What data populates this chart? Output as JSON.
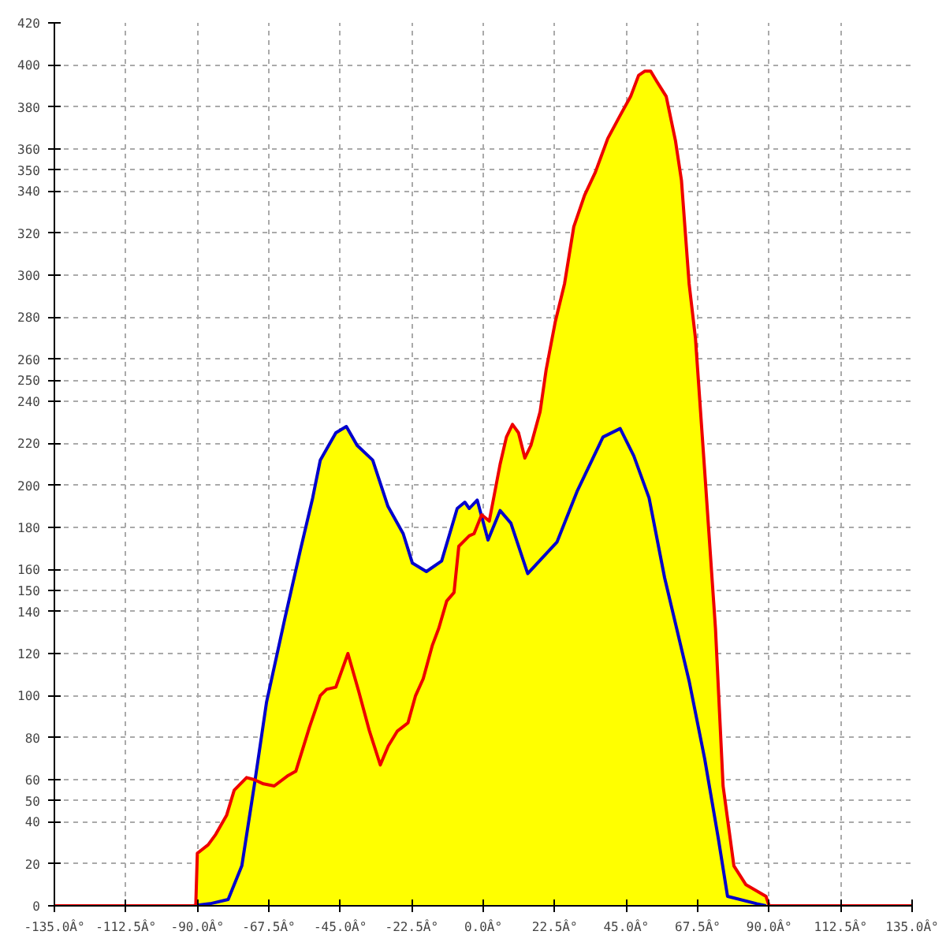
{
  "chart_data": {
    "type": "line",
    "xlim": [
      -135,
      135
    ],
    "ylim": [
      0,
      420
    ],
    "xticks": [
      {
        "value": -135,
        "label": "-135.0Â°"
      },
      {
        "value": -112.5,
        "label": "-112.5Â°"
      },
      {
        "value": -90,
        "label": "-90.0Â°"
      },
      {
        "value": -67.5,
        "label": "-67.5Â°"
      },
      {
        "value": -45,
        "label": "-45.0Â°"
      },
      {
        "value": -22.5,
        "label": "-22.5Â°"
      },
      {
        "value": 0,
        "label": "0.0Â°"
      },
      {
        "value": 22.5,
        "label": "22.5Â°"
      },
      {
        "value": 45,
        "label": "45.0Â°"
      },
      {
        "value": 67.5,
        "label": "67.5Â°"
      },
      {
        "value": 90,
        "label": "90.0Â°"
      },
      {
        "value": 112.5,
        "label": "112.5Â°"
      },
      {
        "value": 135,
        "label": "135.0Â°"
      }
    ],
    "yticks": [
      0,
      20,
      40,
      50,
      60,
      80,
      100,
      120,
      140,
      150,
      160,
      180,
      200,
      220,
      240,
      250,
      260,
      280,
      300,
      320,
      340,
      350,
      360,
      380,
      400,
      420
    ],
    "grid": true,
    "marker": "none",
    "line_style": "solid",
    "series": [
      {
        "type": "area",
        "color": "#ffff00",
        "x": [
          -90.5,
          -90,
          -86.6,
          -84.2,
          -80.8,
          -78.4,
          -74.5,
          -72.1,
          -68.2,
          -62.4,
          -57.6,
          -53.7,
          -51.3,
          -46.4,
          -43.1,
          -39.7,
          -34.8,
          -30,
          -25.2,
          -22.3,
          -17.9,
          -13.1,
          -8.2,
          -5.8,
          -4.4,
          -1.9,
          -0.5,
          1.9,
          5.3,
          7.3,
          9.2,
          11.1,
          13.1,
          15,
          17.9,
          19.8,
          22.7,
          25.6,
          28.5,
          31.9,
          35.3,
          39.2,
          43.1,
          46.4,
          48.9,
          50.8,
          52.7,
          54.7,
          57.6,
          60.5,
          62.4,
          64.8,
          66.8,
          69.7,
          73.1,
          75.5,
          78.9,
          82.7,
          89,
          90
        ],
        "values": [
          0,
          25,
          29,
          34,
          43,
          55,
          61,
          60,
          97,
          137,
          169,
          194,
          212,
          225,
          228,
          219,
          212,
          190,
          177,
          163,
          159,
          164,
          189,
          192,
          189,
          193,
          186,
          183,
          210,
          223,
          229,
          225,
          213,
          219,
          235,
          255,
          278,
          296,
          323,
          338,
          349,
          365,
          376,
          385,
          395,
          397,
          397,
          392,
          385,
          364,
          345,
          296,
          270,
          207,
          132,
          57,
          19,
          10,
          4.5,
          0
        ]
      },
      {
        "color": "#0000cc",
        "x": [
          -91.4,
          -86,
          -80.3,
          -76,
          -72.1,
          -68.2,
          -62.4,
          -57.6,
          -53.7,
          -51.3,
          -46.4,
          -43.1,
          -39.7,
          -34.8,
          -30,
          -25.2,
          -22.3,
          -17.9,
          -13.1,
          -8.2,
          -5.8,
          -4.4,
          -1.9,
          1.5,
          5.3,
          8.7,
          14,
          23.2,
          29.5,
          37.7,
          43.1,
          47.4,
          52.2,
          57.1,
          64.8,
          69.7,
          74,
          76.9,
          86.1,
          89
        ],
        "values": [
          0,
          1,
          3,
          19,
          57,
          97,
          137,
          169,
          194,
          212,
          225,
          228,
          219,
          212,
          190,
          177,
          163,
          159,
          164,
          189,
          192,
          189,
          193,
          174,
          188,
          182,
          158,
          173,
          197,
          223,
          227,
          214,
          194,
          156,
          107,
          70,
          32,
          4.5,
          1,
          0
        ]
      },
      {
        "color": "#ee0000",
        "x": [
          -135,
          -90.5,
          -90,
          -86.6,
          -84.2,
          -80.8,
          -78.4,
          -74.5,
          -72.1,
          -69.2,
          -65.8,
          -61.4,
          -59,
          -54.7,
          -51.3,
          -49.3,
          -46.4,
          -42.6,
          -39.2,
          -35.8,
          -32.4,
          -29.9,
          -27.1,
          -23.7,
          -21.3,
          -18.9,
          -16,
          -14,
          -11.5,
          -9.2,
          -7.7,
          -4.4,
          -2.9,
          -0.5,
          1.9,
          5.3,
          7.3,
          9.2,
          11.1,
          13.1,
          15,
          17.9,
          19.8,
          22.7,
          25.6,
          28.5,
          31.9,
          35.3,
          39.2,
          43.1,
          46.4,
          48.9,
          50.8,
          52.7,
          54.7,
          57.6,
          60.5,
          62.4,
          64.8,
          66.8,
          69.7,
          73.1,
          75.5,
          78.9,
          82.7,
          89,
          90,
          135
        ],
        "values": [
          0,
          0,
          25,
          29,
          34,
          43,
          55,
          61,
          60,
          58,
          57,
          62,
          64,
          85,
          100,
          103,
          104,
          120,
          102,
          83,
          67,
          76,
          83,
          87,
          100,
          108,
          124,
          132,
          145,
          149,
          171,
          176,
          177,
          186,
          183,
          210,
          223,
          229,
          225,
          213,
          219,
          235,
          255,
          278,
          296,
          323,
          338,
          349,
          365,
          376,
          385,
          395,
          397,
          397,
          392,
          385,
          364,
          345,
          296,
          270,
          207,
          132,
          57,
          19,
          10,
          4.5,
          0,
          0
        ]
      }
    ]
  }
}
